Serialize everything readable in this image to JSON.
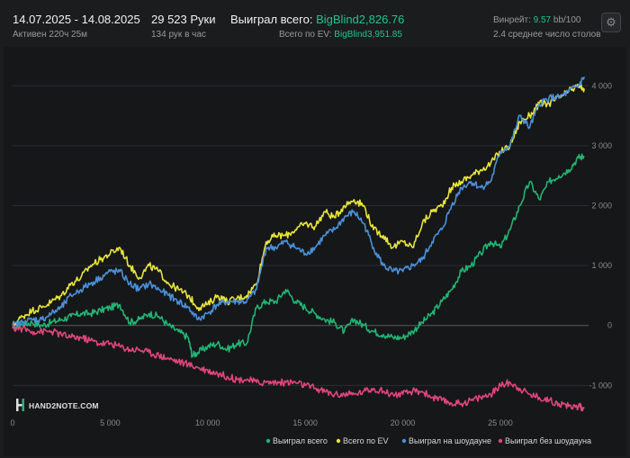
{
  "header": {
    "date_range": "14.07.2025 - 14.08.2025",
    "active": "Активен 220ч 25м",
    "hands": "29 523 Руки",
    "hands_per_hour": "134 рук в час",
    "won_label": "Выиграл всего:",
    "won_value": "BigBlind2,826.76",
    "ev_label": "Всего по EV:",
    "ev_value": "BigBlind3,951.85",
    "winrate_label": "Винрейт:",
    "winrate_value": "9.57",
    "winrate_unit": "bb/100",
    "avg_tables": "2.4 среднее число столов",
    "settings_icon": "gear-icon"
  },
  "brand": {
    "logo_text": "HAND2NOTE.COM"
  },
  "chart_data": {
    "type": "line",
    "title": "",
    "xlabel": "",
    "ylabel": "",
    "xlim": [
      0,
      29523
    ],
    "ylim": [
      -1400,
      4500
    ],
    "x_ticks": [
      0,
      5000,
      10000,
      15000,
      20000,
      25000
    ],
    "x_tick_labels": [
      "0",
      "5 000",
      "10 000",
      "15 000",
      "20 000",
      "25 000"
    ],
    "y_ticks": [
      4000,
      3000,
      2000,
      1000,
      0,
      -1000
    ],
    "y_tick_labels": [
      "4 000",
      "3 000",
      "2 000",
      "1 000",
      "0",
      "-1 000"
    ],
    "legend_position": "bottom-right",
    "series": [
      {
        "name": "Выиграл всего",
        "color": "#21b573",
        "x": [
          0,
          500,
          1000,
          1500,
          2000,
          2500,
          3000,
          3500,
          4000,
          4500,
          5000,
          5500,
          6000,
          6500,
          7000,
          7500,
          8000,
          8500,
          9000,
          9200,
          9500,
          10000,
          10500,
          11000,
          11500,
          12000,
          12500,
          13000,
          13500,
          14000,
          14500,
          15000,
          15500,
          16000,
          16500,
          17000,
          17500,
          18000,
          18500,
          19000,
          19500,
          20000,
          20500,
          21000,
          21500,
          22000,
          22500,
          23000,
          23500,
          24000,
          24500,
          25000,
          25500,
          26000,
          26500,
          27000,
          27500,
          28000,
          28500,
          29000,
          29300
        ],
        "values": [
          -50,
          20,
          50,
          0,
          50,
          100,
          150,
          200,
          200,
          250,
          300,
          350,
          50,
          100,
          200,
          150,
          0,
          -100,
          -200,
          -500,
          -450,
          -350,
          -300,
          -400,
          -300,
          -300,
          300,
          400,
          400,
          600,
          400,
          300,
          200,
          100,
          50,
          -100,
          100,
          0,
          -100,
          -150,
          -200,
          -200,
          -100,
          50,
          200,
          400,
          600,
          900,
          1000,
          1200,
          1400,
          1300,
          1600,
          2000,
          2400,
          2100,
          2400,
          2500,
          2600,
          2800,
          2827
        ]
      },
      {
        "name": "Всего по EV",
        "color": "#e8e53a",
        "x": [
          0,
          500,
          1000,
          1500,
          2000,
          2500,
          3000,
          3500,
          4000,
          4500,
          5000,
          5500,
          6000,
          6500,
          7000,
          7500,
          8000,
          8500,
          9000,
          9500,
          10000,
          10500,
          11000,
          11500,
          12000,
          12500,
          13000,
          13500,
          14000,
          14500,
          15000,
          15500,
          16000,
          16500,
          17000,
          17500,
          18000,
          18500,
          19000,
          19500,
          20000,
          20500,
          21000,
          21500,
          22000,
          22500,
          23000,
          23500,
          24000,
          24500,
          25000,
          25500,
          26000,
          26500,
          27000,
          27500,
          28000,
          28500,
          29000,
          29300
        ],
        "values": [
          0,
          150,
          250,
          300,
          400,
          500,
          700,
          800,
          1000,
          1100,
          1200,
          1300,
          1000,
          800,
          1000,
          900,
          700,
          600,
          500,
          300,
          350,
          500,
          400,
          450,
          500,
          700,
          1400,
          1500,
          1500,
          1600,
          1700,
          1650,
          1900,
          1800,
          2000,
          2100,
          2000,
          1600,
          1500,
          1300,
          1400,
          1300,
          1700,
          1900,
          2000,
          2300,
          2400,
          2500,
          2600,
          2700,
          2900,
          3000,
          3400,
          3500,
          3700,
          3700,
          3800,
          3900,
          4000,
          3952
        ]
      },
      {
        "name": "Выиграл на шоудауне",
        "color": "#4a90d9",
        "x": [
          0,
          500,
          1000,
          1500,
          2000,
          2500,
          3000,
          3500,
          4000,
          4500,
          5000,
          5500,
          6000,
          6500,
          7000,
          7500,
          8000,
          8500,
          9000,
          9500,
          10000,
          10500,
          11000,
          11500,
          12000,
          12500,
          13000,
          13500,
          14000,
          14500,
          15000,
          15500,
          16000,
          16500,
          17000,
          17500,
          18000,
          18500,
          19000,
          19500,
          20000,
          20500,
          21000,
          21500,
          22000,
          22500,
          23000,
          23500,
          24000,
          24500,
          25000,
          25500,
          26000,
          26500,
          27000,
          27500,
          28000,
          28500,
          29000,
          29300
        ],
        "values": [
          0,
          50,
          100,
          100,
          200,
          300,
          500,
          600,
          700,
          800,
          900,
          900,
          700,
          600,
          700,
          600,
          500,
          400,
          300,
          100,
          200,
          350,
          400,
          400,
          400,
          600,
          1300,
          1300,
          1400,
          1300,
          1200,
          1300,
          1500,
          1600,
          1800,
          1900,
          1700,
          1300,
          1000,
          900,
          900,
          1000,
          1100,
          1400,
          1600,
          2000,
          2300,
          2400,
          2300,
          2400,
          2900,
          3000,
          3500,
          3300,
          3700,
          3800,
          3800,
          3900,
          4000,
          4150
        ]
      },
      {
        "name": "Выиграл без шоудауна",
        "color": "#e0457b",
        "x": [
          0,
          500,
          1000,
          1500,
          2000,
          2500,
          3000,
          3500,
          4000,
          4500,
          5000,
          5500,
          6000,
          6500,
          7000,
          7500,
          8000,
          8500,
          9000,
          9500,
          10000,
          10500,
          11000,
          11500,
          12000,
          12500,
          13000,
          13500,
          14000,
          14500,
          15000,
          15500,
          16000,
          16500,
          17000,
          17500,
          18000,
          18500,
          19000,
          19500,
          20000,
          20500,
          21000,
          21500,
          22000,
          22500,
          23000,
          23500,
          24000,
          24500,
          25000,
          25500,
          26000,
          26500,
          27000,
          27500,
          28000,
          28500,
          29000,
          29300
        ],
        "values": [
          -50,
          -50,
          -100,
          -100,
          -100,
          -150,
          -200,
          -200,
          -250,
          -300,
          -300,
          -350,
          -400,
          -400,
          -450,
          -500,
          -550,
          -600,
          -650,
          -700,
          -750,
          -800,
          -850,
          -900,
          -900,
          -950,
          -950,
          -950,
          -950,
          -950,
          -1000,
          -1050,
          -1100,
          -1150,
          -1150,
          -1150,
          -1100,
          -1050,
          -1100,
          -1150,
          -1150,
          -1100,
          -1100,
          -1200,
          -1250,
          -1300,
          -1300,
          -1250,
          -1200,
          -1150,
          -1000,
          -950,
          -1050,
          -1150,
          -1200,
          -1250,
          -1300,
          -1350,
          -1350,
          -1380
        ]
      }
    ]
  }
}
